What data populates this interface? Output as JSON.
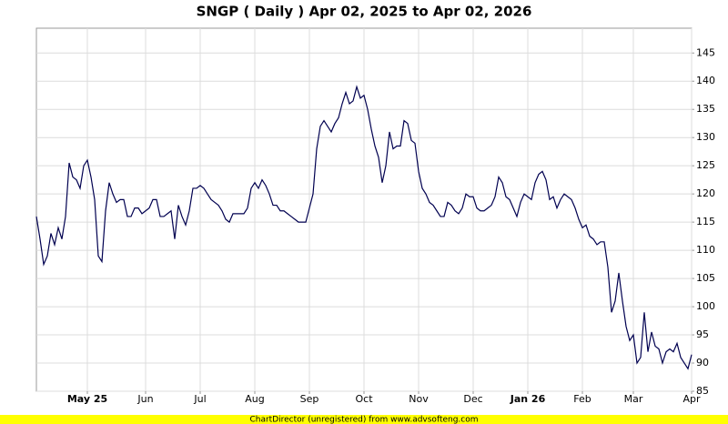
{
  "chart_data": {
    "type": "line",
    "title": "SNGP ( Daily ) Apr 02, 2025 to Apr 02, 2026",
    "footer": "ChartDirector (unregistered) from www.advsofteng.com",
    "color": "#000050",
    "grid": true,
    "ylim": [
      85,
      149.4
    ],
    "yticks": [
      85,
      90,
      95,
      100,
      105,
      110,
      115,
      120,
      125,
      130,
      135,
      140,
      145
    ],
    "categories": [
      null,
      null,
      null,
      null,
      null,
      null,
      null,
      null,
      null,
      null,
      null,
      null,
      null,
      null,
      "May 25",
      null,
      null,
      null,
      null,
      null,
      null,
      null,
      null,
      null,
      null,
      null,
      null,
      null,
      null,
      null,
      "Jun",
      null,
      null,
      null,
      null,
      null,
      null,
      null,
      null,
      null,
      null,
      null,
      null,
      null,
      null,
      "Jul",
      null,
      null,
      null,
      null,
      null,
      null,
      null,
      null,
      null,
      null,
      null,
      null,
      null,
      null,
      "Aug",
      null,
      null,
      null,
      null,
      null,
      null,
      null,
      null,
      null,
      null,
      null,
      null,
      null,
      null,
      "Sep",
      null,
      null,
      null,
      null,
      null,
      null,
      null,
      null,
      null,
      null,
      null,
      null,
      null,
      null,
      "Oct",
      null,
      null,
      null,
      null,
      null,
      null,
      null,
      null,
      null,
      null,
      null,
      null,
      null,
      null,
      "Nov",
      null,
      null,
      null,
      null,
      null,
      null,
      null,
      null,
      null,
      null,
      null,
      null,
      null,
      null,
      "Dec",
      null,
      null,
      null,
      null,
      null,
      null,
      null,
      null,
      null,
      null,
      null,
      null,
      null,
      null,
      "Jan 26",
      null,
      null,
      null,
      null,
      null,
      null,
      null,
      null,
      null,
      null,
      null,
      null,
      null,
      null,
      "Feb",
      null,
      null,
      null,
      null,
      null,
      null,
      null,
      null,
      null,
      null,
      null,
      null,
      null,
      "Mar",
      null,
      null,
      null,
      null,
      null,
      null,
      null,
      null,
      null,
      null,
      null,
      null,
      null,
      null,
      null,
      "Apr"
    ],
    "values": [
      116,
      112,
      107.5,
      109,
      113,
      111,
      114,
      112,
      116,
      125.5,
      123,
      122.5,
      121,
      125,
      126,
      123,
      119,
      109,
      108,
      117,
      122,
      120,
      118.5,
      119,
      119,
      116,
      116,
      117.5,
      117.5,
      116.5,
      117,
      117.5,
      119,
      119,
      116,
      116,
      116.5,
      117,
      112,
      118,
      116,
      114.5,
      117,
      121,
      121,
      121.5,
      121,
      120,
      119,
      118.5,
      118,
      117,
      115.5,
      115,
      116.5,
      116.5,
      116.5,
      116.5,
      117.5,
      121,
      122,
      121,
      122.5,
      121.5,
      120,
      118,
      118,
      117,
      117,
      116.5,
      116,
      115.5,
      115,
      115,
      115,
      117.5,
      120,
      128,
      132,
      133,
      132,
      131,
      132.5,
      133.5,
      136,
      138,
      136,
      136.5,
      139,
      137,
      137.5,
      135,
      131.5,
      128.5,
      126.5,
      122,
      125,
      131,
      128,
      128.5,
      128.5,
      133,
      132.5,
      129.5,
      129,
      124,
      121,
      120,
      118.5,
      118,
      117,
      116,
      116,
      118.5,
      118,
      117,
      116.5,
      117.5,
      120,
      119.5,
      119.5,
      117.5,
      117,
      117,
      117.5,
      118,
      119.5,
      123,
      122,
      119.5,
      119,
      117.5,
      116,
      118.5,
      120,
      119.5,
      119,
      122,
      123.5,
      124,
      122.5,
      119,
      119.5,
      117.5,
      119,
      120,
      119.5,
      119,
      117.5,
      115.5,
      114,
      114.5,
      112.5,
      112,
      111,
      111.5,
      111.5,
      107,
      99,
      101,
      106,
      101,
      96.5,
      94,
      95,
      90,
      91,
      99,
      92,
      95.5,
      93,
      92.5,
      90,
      92,
      92.5,
      92,
      93.5,
      91,
      90,
      89,
      91.5
    ]
  }
}
